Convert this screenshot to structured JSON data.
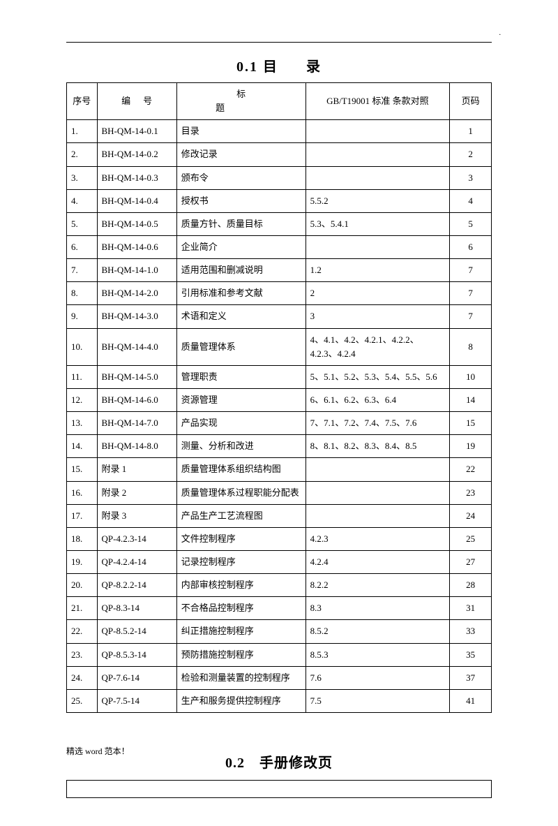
{
  "heading1_prefix": "0.1",
  "heading1_a": "目",
  "heading1_b": "录",
  "heading2": "0.2　手册修改页",
  "footer": "精选 word 范本！",
  "columns": {
    "seq": "序号",
    "code": "编号",
    "title": "标题",
    "std": "GB/T19001 标准 条款对照",
    "page": "页码"
  },
  "rows": [
    {
      "seq": "1.",
      "code": "BH-QM-14-0.1",
      "title": "目录",
      "std": "",
      "page": "1"
    },
    {
      "seq": "2.",
      "code": "BH-QM-14-0.2",
      "title": "修改记录",
      "std": "",
      "page": "2"
    },
    {
      "seq": "3.",
      "code": "BH-QM-14-0.3",
      "title": "颁布令",
      "std": "",
      "page": "3"
    },
    {
      "seq": "4.",
      "code": "BH-QM-14-0.4",
      "title": "授权书",
      "std": "5.5.2",
      "page": "4"
    },
    {
      "seq": "5.",
      "code": "BH-QM-14-0.5",
      "title": "质量方针、质量目标",
      "std": "5.3、5.4.1",
      "page": "5"
    },
    {
      "seq": "6.",
      "code": "BH-QM-14-0.6",
      "title": "企业简介",
      "std": "",
      "page": "6"
    },
    {
      "seq": "7.",
      "code": "BH-QM-14-1.0",
      "title": "适用范围和删减说明",
      "std": "1.2",
      "page": "7"
    },
    {
      "seq": "8.",
      "code": "BH-QM-14-2.0",
      "title": "引用标准和参考文献",
      "std": "2",
      "page": "7"
    },
    {
      "seq": "9.",
      "code": "BH-QM-14-3.0",
      "title": "术语和定义",
      "std": "3",
      "page": "7"
    },
    {
      "seq": "10.",
      "code": "BH-QM-14-4.0",
      "title": "质量管理体系",
      "std": "4、4.1、4.2、4.2.1、4.2.2、4.2.3、4.2.4",
      "page": "8"
    },
    {
      "seq": "11.",
      "code": "BH-QM-14-5.0",
      "title": "管理职责",
      "std": "5、5.1、5.2、5.3、5.4、5.5、5.6",
      "page": "10"
    },
    {
      "seq": "12.",
      "code": "BH-QM-14-6.0",
      "title": "资源管理",
      "std": "6、6.1、6.2、6.3、6.4",
      "page": "14"
    },
    {
      "seq": "13.",
      "code": "BH-QM-14-7.0",
      "title": "产品实现",
      "std": "7、7.1、7.2、7.4、7.5、7.6",
      "page": "15"
    },
    {
      "seq": "14.",
      "code": "BH-QM-14-8.0",
      "title": "测量、分析和改进",
      "std": "8、8.1、8.2、8.3、8.4、8.5",
      "page": "19"
    },
    {
      "seq": "15.",
      "code": "附录 1",
      "title": "质量管理体系组织结构图",
      "std": "",
      "page": "22"
    },
    {
      "seq": "16.",
      "code": "附录 2",
      "title": "质量管理体系过程职能分配表",
      "std": "",
      "page": "23"
    },
    {
      "seq": "17.",
      "code": "附录 3",
      "title": "产品生产工艺流程图",
      "std": "",
      "page": "24"
    },
    {
      "seq": "18.",
      "code": "QP-4.2.3-14",
      "title": "文件控制程序",
      "std": "4.2.3",
      "page": "25"
    },
    {
      "seq": "19.",
      "code": "QP-4.2.4-14",
      "title": "记录控制程序",
      "std": "4.2.4",
      "page": "27"
    },
    {
      "seq": "20.",
      "code": "QP-8.2.2-14",
      "title": "内部审核控制程序",
      "std": "8.2.2",
      "page": "28"
    },
    {
      "seq": "21.",
      "code": "QP-8.3-14",
      "title": "不合格品控制程序",
      "std": "8.3",
      "page": "31"
    },
    {
      "seq": "22.",
      "code": "QP-8.5.2-14",
      "title": "纠正措施控制程序",
      "std": "8.5.2",
      "page": "33"
    },
    {
      "seq": "23.",
      "code": "QP-8.5.3-14",
      "title": "预防措施控制程序",
      "std": "8.5.3",
      "page": "35"
    },
    {
      "seq": "24.",
      "code": "QP-7.6-14",
      "title": "检验和测量装置的控制程序",
      "std": "7.6",
      "page": "37"
    },
    {
      "seq": "25.",
      "code": "QP-7.5-14",
      "title": "生产和服务提供控制程序",
      "std": "7.5",
      "page": "41"
    }
  ]
}
